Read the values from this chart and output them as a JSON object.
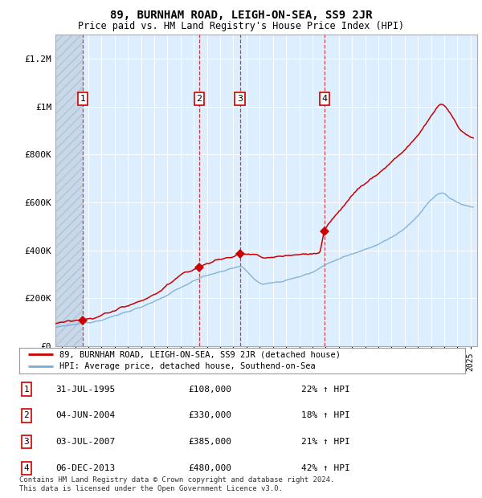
{
  "title": "89, BURNHAM ROAD, LEIGH-ON-SEA, SS9 2JR",
  "subtitle": "Price paid vs. HM Land Registry's House Price Index (HPI)",
  "legend_line1": "89, BURNHAM ROAD, LEIGH-ON-SEA, SS9 2JR (detached house)",
  "legend_line2": "HPI: Average price, detached house, Southend-on-Sea",
  "footer1": "Contains HM Land Registry data © Crown copyright and database right 2024.",
  "footer2": "This data is licensed under the Open Government Licence v3.0.",
  "red_color": "#cc0000",
  "blue_color": "#7aadd4",
  "bg_plot": "#ddeeff",
  "bg_hatch": "#c8d8e8",
  "purchases": [
    {
      "label": "1",
      "date_x": 1995.58,
      "price": 108000
    },
    {
      "label": "2",
      "date_x": 2004.42,
      "price": 330000
    },
    {
      "label": "3",
      "date_x": 2007.5,
      "price": 385000
    },
    {
      "label": "4",
      "date_x": 2013.92,
      "price": 480000
    }
  ],
  "table_rows": [
    {
      "num": "1",
      "date": "31-JUL-1995",
      "price": "£108,000",
      "pct": "22% ↑ HPI"
    },
    {
      "num": "2",
      "date": "04-JUN-2004",
      "price": "£330,000",
      "pct": "18% ↑ HPI"
    },
    {
      "num": "3",
      "date": "03-JUL-2007",
      "price": "£385,000",
      "pct": "21% ↑ HPI"
    },
    {
      "num": "4",
      "date": "06-DEC-2013",
      "price": "£480,000",
      "pct": "42% ↑ HPI"
    }
  ],
  "ylim": [
    0,
    1300000
  ],
  "xlim_start": 1993.5,
  "xlim_end": 2025.5,
  "yticks": [
    0,
    200000,
    400000,
    600000,
    800000,
    1000000,
    1200000
  ],
  "ytick_labels": [
    "£0",
    "£200K",
    "£400K",
    "£600K",
    "£800K",
    "£1M",
    "£1.2M"
  ]
}
